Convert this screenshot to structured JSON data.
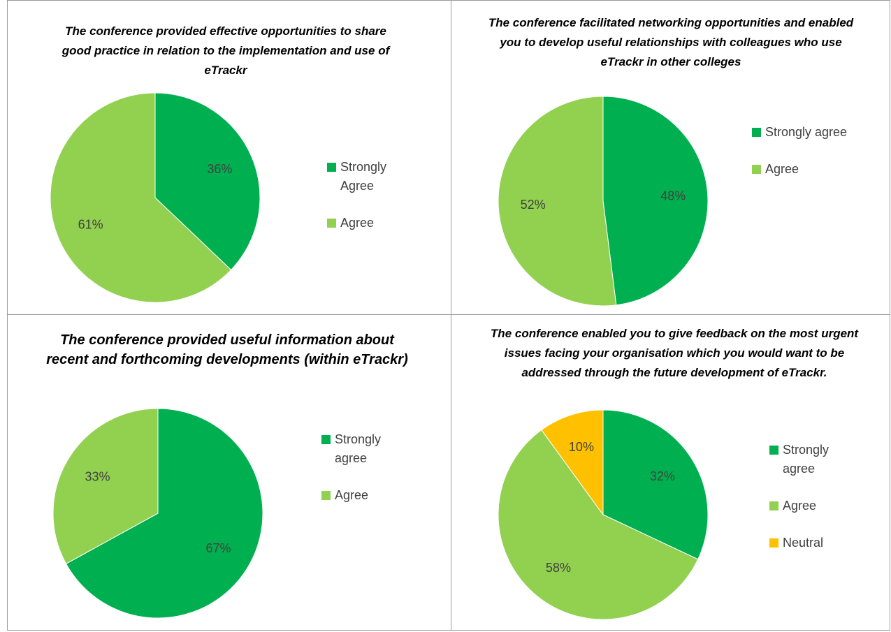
{
  "chart_data": [
    {
      "type": "pie",
      "title": "The conference provided effective opportunities to share good practice in relation to the implementation and use of eTrackr",
      "categories": [
        "Strongly Agree",
        "Agree"
      ],
      "values": [
        36,
        61
      ],
      "value_labels": [
        "36%",
        "61%"
      ],
      "colors": [
        "#00b050",
        "#92d050"
      ]
    },
    {
      "type": "pie",
      "title": "The conference facilitated networking opportunities and enabled you to develop useful relationships with colleagues who use eTrackr in other colleges",
      "categories": [
        "Strongly agree",
        "Agree"
      ],
      "values": [
        48,
        52
      ],
      "value_labels": [
        "48%",
        "52%"
      ],
      "colors": [
        "#00b050",
        "#92d050"
      ]
    },
    {
      "type": "pie",
      "title": "The conference provided useful information about recent and forthcoming developments (within eTrackr)",
      "categories": [
        "Strongly agree",
        "Agree"
      ],
      "values": [
        67,
        33
      ],
      "value_labels": [
        "67%",
        "33%"
      ],
      "colors": [
        "#00b050",
        "#92d050"
      ]
    },
    {
      "type": "pie",
      "title": "The conference enabled you to give feedback on the most urgent issues facing your organisation which you would want to be addressed through the future development of eTrackr.",
      "categories": [
        "Strongly agree",
        "Agree",
        "Neutral"
      ],
      "values": [
        32,
        58,
        10
      ],
      "value_labels": [
        "32%",
        "58%",
        "10%"
      ],
      "colors": [
        "#00b050",
        "#92d050",
        "#ffc000"
      ]
    }
  ]
}
